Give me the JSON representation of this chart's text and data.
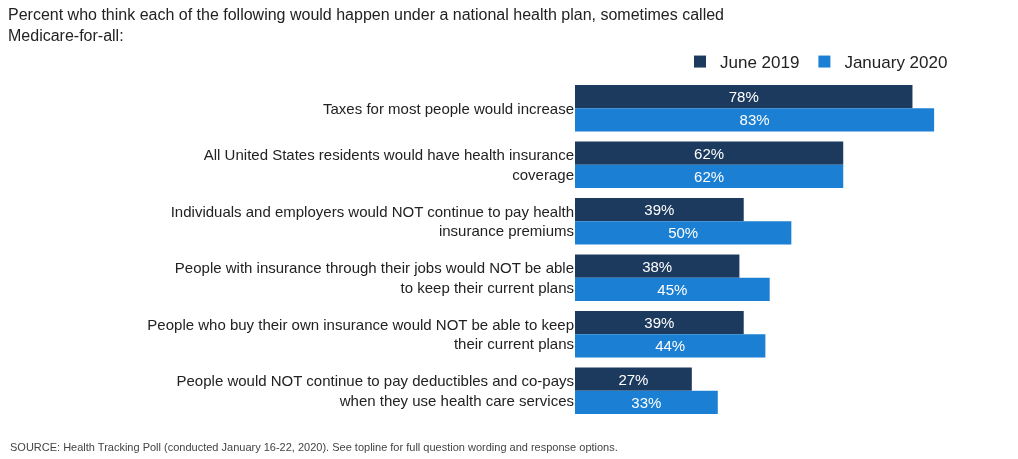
{
  "chart_data": {
    "type": "bar",
    "orientation": "horizontal",
    "subtitle": "Percent who think each of the following would happen under a national health plan, sometimes called Medicare-for-all:",
    "categories": [
      "Taxes for most people would increase",
      "All United States residents would have health insurance coverage",
      "Individuals and employers would NOT continue to pay health insurance premiums",
      "People with insurance through their jobs would NOT be able to keep their current plans",
      "People who buy their own insurance would NOT be able to keep their current plans",
      "People would NOT continue to pay deductibles and co-pays when they use health care services"
    ],
    "series": [
      {
        "name": "June 2019",
        "color": "#1c3a5e",
        "values": [
          78,
          62,
          39,
          38,
          39,
          27
        ],
        "value_labels": [
          "78%",
          "62%",
          "39%",
          "38%",
          "39%",
          "27%"
        ]
      },
      {
        "name": "January 2020",
        "color": "#1b7fd3",
        "values": [
          83,
          62,
          50,
          45,
          44,
          33
        ],
        "value_labels": [
          "83%",
          "62%",
          "50%",
          "45%",
          "44%",
          "33%"
        ]
      }
    ],
    "legend": "top right",
    "annotations": [
      "SOURCE: Health Tracking Poll (conducted January 16-22, 2020). See topline for full question wording and response options."
    ]
  }
}
